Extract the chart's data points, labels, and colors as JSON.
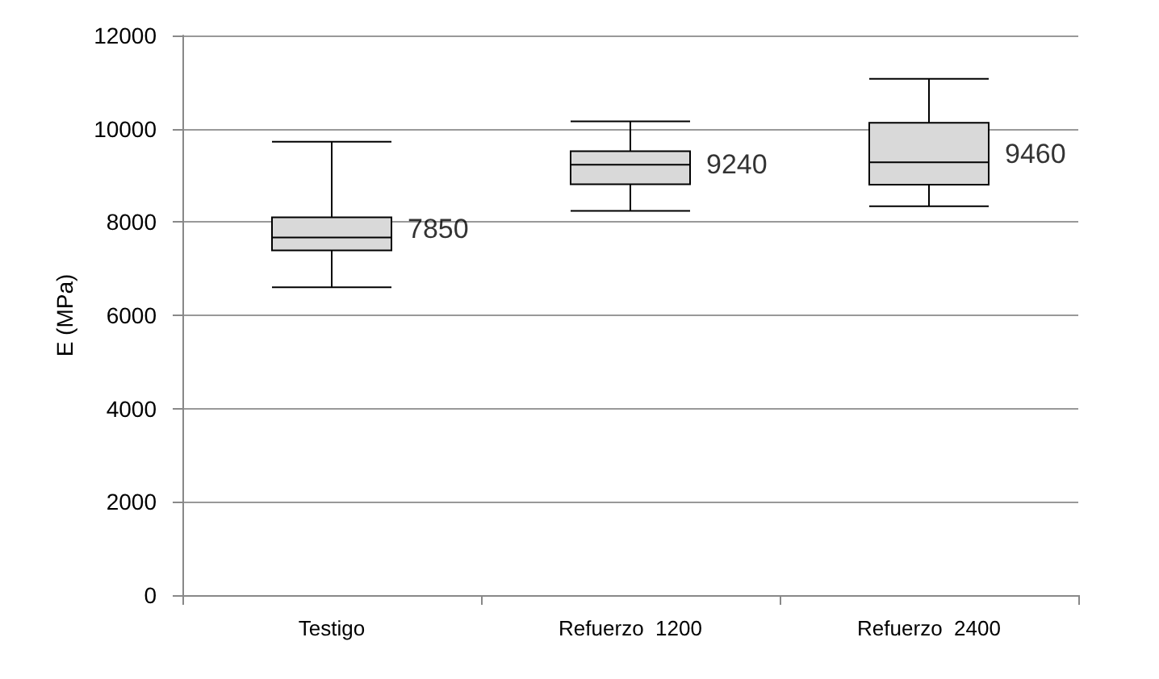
{
  "chart_data": {
    "type": "box",
    "ylabel": "E (MPa)",
    "categories": [
      "Testigo",
      "Refuerzo  1200",
      "Refuerzo  2400"
    ],
    "boxes": [
      {
        "low": 6600,
        "q1": 7390,
        "median": 7670,
        "q3": 8100,
        "high": 9720
      },
      {
        "low": 8240,
        "q1": 8810,
        "median": 9230,
        "q3": 9520,
        "high": 10160
      },
      {
        "low": 8340,
        "q1": 8800,
        "median": 9280,
        "q3": 10130,
        "high": 11070
      }
    ],
    "color": "#d9d9d9",
    "annotations": [
      {
        "text": "7850",
        "x": "Testigo",
        "y": 7850
      },
      {
        "text": "9240",
        "x": "Refuerzo  1200",
        "y": 9240
      },
      {
        "text": "9460",
        "x": "Refuerzo  2400",
        "y": 9460
      }
    ],
    "ylim": [
      0,
      12000
    ],
    "yticks": [
      0,
      2000,
      4000,
      6000,
      8000,
      10000,
      12000
    ],
    "grid": "y"
  }
}
